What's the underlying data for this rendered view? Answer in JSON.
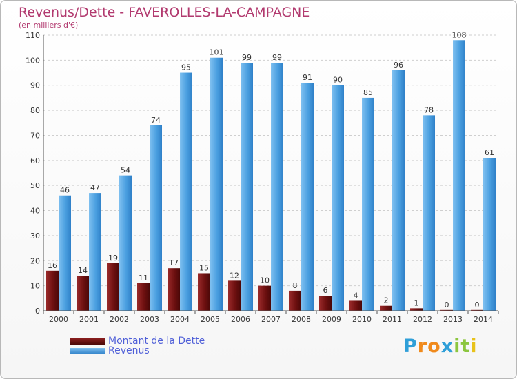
{
  "header": {
    "title": "Revenus/Dette - FAVEROLLES-LA-CAMPAGNE",
    "subtitle": "(en milliers d'€)"
  },
  "chart_data": {
    "type": "bar",
    "categories": [
      "2000",
      "2001",
      "2002",
      "2003",
      "2004",
      "2005",
      "2006",
      "2007",
      "2008",
      "2009",
      "2010",
      "2011",
      "2012",
      "2013",
      "2014"
    ],
    "series": [
      {
        "name": "Montant de la Dette",
        "color": "#7a1414",
        "values": [
          16,
          14,
          19,
          11,
          17,
          15,
          12,
          10,
          8,
          6,
          4,
          2,
          1,
          0,
          0
        ]
      },
      {
        "name": "Revenus",
        "color": "#4a9fe0",
        "values": [
          46,
          47,
          54,
          74,
          95,
          101,
          99,
          99,
          91,
          90,
          85,
          96,
          78,
          108,
          61
        ]
      }
    ],
    "yticks": [
      0,
      10,
      20,
      30,
      40,
      50,
      60,
      70,
      80,
      90,
      100,
      110
    ],
    "ylim": [
      0,
      110
    ],
    "grid": true,
    "legend": "bottom-left"
  },
  "legend": {
    "items": [
      {
        "label": "Montant de la Dette",
        "color": "#7a1414"
      },
      {
        "label": "Revenus",
        "color": "#4a9fe0"
      }
    ]
  },
  "logo": {
    "letters": [
      "P",
      "r",
      "o",
      "x",
      "i",
      "t",
      "i"
    ],
    "colors": [
      "#2f9fd8",
      "#f08a1c",
      "#f08a1c",
      "#2f9fd8",
      "#8cc63f",
      "#8cc63f",
      "#e8c21a"
    ]
  }
}
